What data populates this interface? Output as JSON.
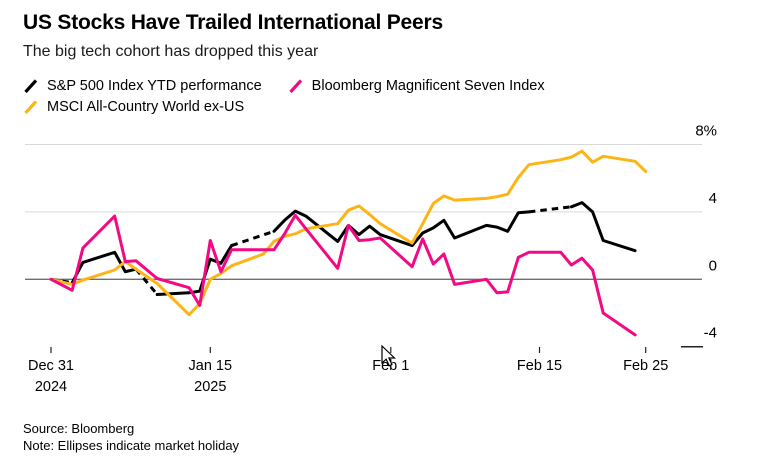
{
  "header": {
    "title": "US Stocks Have Trailed International Peers",
    "subtitle": "The big tech cohort has dropped this year"
  },
  "footer": {
    "source": "Source: Bloomberg",
    "note": "Note: Ellipses indicate market holiday"
  },
  "chart_data": {
    "type": "line",
    "title": "US Stocks Have Trailed International Peers",
    "subtitle": "The big tech cohort has dropped this year",
    "legend_position": "top",
    "grid": "horizontal",
    "x_axis": {
      "unit": "calendar days since Dec 31 2024",
      "range_days": [
        0,
        56
      ],
      "ticks": [
        {
          "day": 0,
          "line1": "Dec 31",
          "line2": "2024"
        },
        {
          "day": 15,
          "line1": "Jan 15",
          "line2": "2025"
        },
        {
          "day": 32,
          "line1": "Feb 1"
        },
        {
          "day": 46,
          "line1": "Feb 15"
        },
        {
          "day": 56,
          "line1": "Feb 25"
        }
      ]
    },
    "y_axis": {
      "unit": "%",
      "ylim": [
        -4,
        8
      ],
      "gridlines": [
        {
          "v": 8,
          "label": "8%"
        },
        {
          "v": 4,
          "label": "4"
        },
        {
          "v": 0,
          "label": "0",
          "zero": true
        },
        {
          "v": -4,
          "label": "-4",
          "stub": true
        }
      ]
    },
    "dash_note": "dashed (ellipsis) segments on the S&P line mark US market holidays",
    "draw_order": [
      0,
      2,
      1
    ],
    "series": [
      {
        "id": "sp500",
        "name": "S&P 500 Index YTD performance",
        "color": "#000000",
        "dashed_spans": [
          [
            0,
            2
          ],
          [
            8,
            10
          ],
          [
            17,
            21
          ],
          [
            45,
            49
          ]
        ],
        "points": [
          [
            0,
            0
          ],
          [
            2,
            -0.2
          ],
          [
            3,
            1.0
          ],
          [
            6,
            1.6
          ],
          [
            7,
            0.45
          ],
          [
            8,
            0.6
          ],
          [
            10,
            -0.9
          ],
          [
            13,
            -0.8
          ],
          [
            14,
            -0.7
          ],
          [
            15,
            1.2
          ],
          [
            16,
            0.95
          ],
          [
            17,
            2.0
          ],
          [
            21,
            2.85
          ],
          [
            22,
            3.5
          ],
          [
            23,
            4.05
          ],
          [
            24,
            3.75
          ],
          [
            27,
            2.25
          ],
          [
            28,
            3.2
          ],
          [
            29,
            2.65
          ],
          [
            30,
            3.15
          ],
          [
            31,
            2.65
          ],
          [
            34,
            2.0
          ],
          [
            35,
            2.75
          ],
          [
            36,
            3.05
          ],
          [
            37,
            3.5
          ],
          [
            38,
            2.45
          ],
          [
            41,
            3.2
          ],
          [
            42,
            3.1
          ],
          [
            43,
            2.85
          ],
          [
            44,
            3.95
          ],
          [
            45,
            4.0
          ],
          [
            49,
            4.3
          ],
          [
            50,
            4.55
          ],
          [
            51,
            4.0
          ],
          [
            52,
            2.3
          ],
          [
            55,
            1.7
          ]
        ]
      },
      {
        "id": "mag7",
        "name": "Bloomberg Magnificent Seven Index",
        "color": "#f20a84",
        "dashed_spans": [],
        "points": [
          [
            0,
            0
          ],
          [
            2,
            -0.65
          ],
          [
            3,
            1.85
          ],
          [
            6,
            3.75
          ],
          [
            7,
            1.05
          ],
          [
            8,
            1.1
          ],
          [
            10,
            0.05
          ],
          [
            13,
            -0.5
          ],
          [
            14,
            -1.55
          ],
          [
            15,
            2.3
          ],
          [
            16,
            0.45
          ],
          [
            17,
            1.75
          ],
          [
            21,
            1.75
          ],
          [
            22,
            2.7
          ],
          [
            23,
            3.8
          ],
          [
            24,
            3.0
          ],
          [
            27,
            0.65
          ],
          [
            28,
            3.2
          ],
          [
            29,
            2.3
          ],
          [
            30,
            2.35
          ],
          [
            31,
            2.45
          ],
          [
            34,
            0.75
          ],
          [
            35,
            2.4
          ],
          [
            36,
            0.9
          ],
          [
            37,
            1.5
          ],
          [
            38,
            -0.3
          ],
          [
            41,
            0.0
          ],
          [
            42,
            -0.8
          ],
          [
            43,
            -0.75
          ],
          [
            44,
            1.3
          ],
          [
            45,
            1.6
          ],
          [
            48,
            1.6
          ],
          [
            49,
            0.85
          ],
          [
            50,
            1.25
          ],
          [
            51,
            0.55
          ],
          [
            52,
            -2.0
          ],
          [
            55,
            -3.3
          ]
        ]
      },
      {
        "id": "msci-ex-us",
        "name": "MSCI All-Country World ex-US",
        "color": "#fdb515",
        "dashed_spans": [],
        "points": [
          [
            0,
            0
          ],
          [
            2,
            -0.3
          ],
          [
            3,
            -0.05
          ],
          [
            6,
            0.55
          ],
          [
            7,
            1.05
          ],
          [
            8,
            0.6
          ],
          [
            10,
            -0.25
          ],
          [
            13,
            -2.1
          ],
          [
            14,
            -1.45
          ],
          [
            15,
            0.0
          ],
          [
            16,
            0.35
          ],
          [
            17,
            0.8
          ],
          [
            20,
            1.5
          ],
          [
            21,
            2.25
          ],
          [
            22,
            2.55
          ],
          [
            23,
            2.7
          ],
          [
            24,
            3.0
          ],
          [
            27,
            3.3
          ],
          [
            28,
            4.1
          ],
          [
            29,
            4.35
          ],
          [
            30,
            3.85
          ],
          [
            31,
            3.3
          ],
          [
            34,
            2.15
          ],
          [
            35,
            3.3
          ],
          [
            36,
            4.5
          ],
          [
            37,
            4.95
          ],
          [
            38,
            4.7
          ],
          [
            41,
            4.8
          ],
          [
            42,
            4.9
          ],
          [
            43,
            5.05
          ],
          [
            44,
            6.05
          ],
          [
            45,
            6.8
          ],
          [
            48,
            7.1
          ],
          [
            49,
            7.25
          ],
          [
            50,
            7.6
          ],
          [
            51,
            6.95
          ],
          [
            52,
            7.3
          ],
          [
            55,
            7.0
          ],
          [
            56,
            6.4
          ]
        ]
      }
    ]
  }
}
